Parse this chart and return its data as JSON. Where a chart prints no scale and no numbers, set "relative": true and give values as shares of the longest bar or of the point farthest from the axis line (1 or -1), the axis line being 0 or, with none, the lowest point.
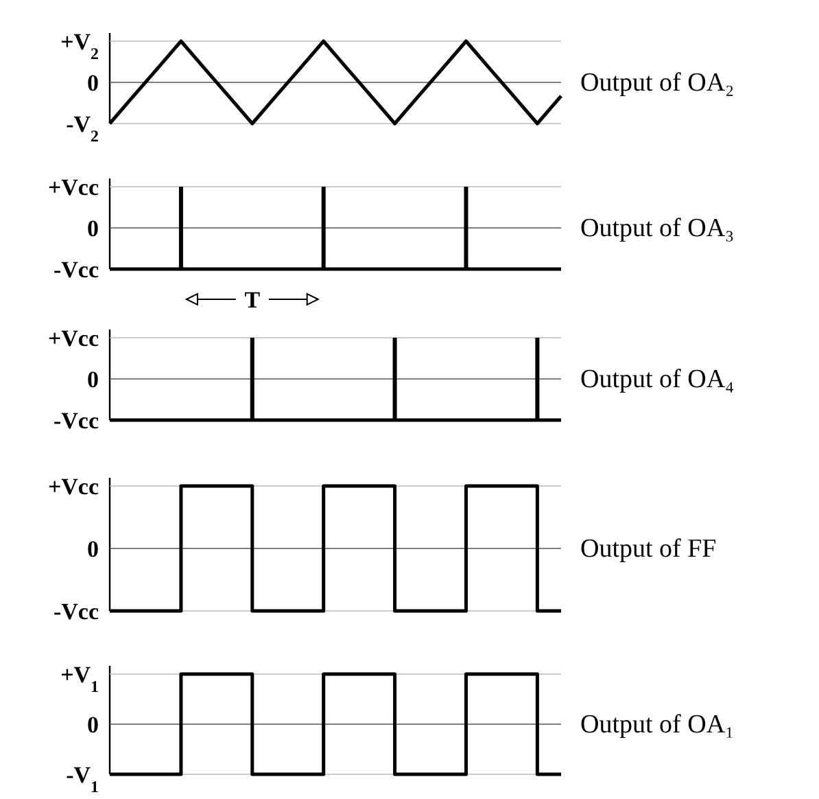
{
  "chart_data": [
    {
      "type": "line",
      "relative": true,
      "categories": [
        null,
        null,
        null,
        null,
        null,
        null,
        null,
        null,
        null,
        null,
        null,
        null,
        null,
        null,
        null,
        null,
        null,
        null,
        null,
        null
      ],
      "legend": false,
      "marker": "none",
      "line_style": "solid",
      "ref_lines": [
        {
          "axis": "y",
          "value": 1,
          "label": "+V$_{2}$"
        },
        {
          "axis": "y",
          "value": 0,
          "label": "0"
        },
        {
          "axis": "y",
          "value": -1,
          "label": "-V$_{2}$"
        }
      ],
      "series": [
        {
          "name": "Output of OA₂",
          "color": "#000000",
          "values": [
            -1,
            -0.333,
            0.333,
            1,
            0.333,
            -0.333,
            -1,
            -0.333,
            0.333,
            1,
            0.333,
            -0.333,
            -1,
            -0.333,
            0.333,
            1,
            0.333,
            -0.333,
            -1,
            -0.333
          ]
        }
      ]
    },
    {
      "type": "bar",
      "relative": true,
      "categories": [
        null,
        null,
        null,
        null,
        null,
        null,
        null,
        null,
        null,
        null,
        null,
        null,
        null,
        null,
        null,
        null,
        null,
        null,
        null,
        null
      ],
      "legend": false,
      "annotations": [
        "-Vcc",
        "T"
      ],
      "ref_lines": [
        {
          "axis": "y",
          "value": 1,
          "label": "+Vcc"
        },
        {
          "axis": "y",
          "value": 0.5,
          "label": "0"
        }
      ],
      "series": [
        {
          "name": "Output of OA₃",
          "color": "#000000",
          "values": [
            0,
            0,
            0,
            1,
            0,
            0,
            0,
            0,
            0,
            1,
            0,
            0,
            0,
            0,
            0,
            1,
            0,
            0,
            0,
            0
          ]
        }
      ]
    },
    {
      "type": "bar",
      "relative": true,
      "categories": [
        null,
        null,
        null,
        null,
        null,
        null,
        null,
        null,
        null,
        null,
        null,
        null,
        null,
        null,
        null,
        null,
        null,
        null,
        null,
        null
      ],
      "legend": false,
      "annotations": [
        "-Vcc"
      ],
      "ref_lines": [
        {
          "axis": "y",
          "value": 1,
          "label": "+Vcc"
        },
        {
          "axis": "y",
          "value": 0.5,
          "label": "0"
        }
      ],
      "series": [
        {
          "name": "Output of OA₄",
          "color": "#000000",
          "values": [
            0,
            0,
            0,
            0,
            0,
            0,
            1,
            0,
            0,
            0,
            0,
            0,
            1,
            0,
            0,
            0,
            0,
            0,
            1,
            0
          ]
        }
      ]
    },
    {
      "type": "step",
      "relative": true,
      "categories": [
        null,
        null,
        null,
        null,
        null,
        null,
        null,
        null,
        null,
        null,
        null,
        null,
        null,
        null,
        null,
        null,
        null,
        null,
        null,
        null
      ],
      "legend": false,
      "marker": "none",
      "line_style": "solid",
      "ref_lines": [
        {
          "axis": "y",
          "value": 1,
          "label": "+Vcc"
        },
        {
          "axis": "y",
          "value": 0,
          "label": "0"
        },
        {
          "axis": "y",
          "value": -1,
          "label": "-Vcc"
        }
      ],
      "series": [
        {
          "name": "Output of FF",
          "color": "#000000",
          "values": [
            -1,
            -1,
            -1,
            1,
            1,
            1,
            -1,
            -1,
            -1,
            1,
            1,
            1,
            -1,
            -1,
            -1,
            1,
            1,
            1,
            -1,
            -1
          ]
        }
      ]
    },
    {
      "type": "step",
      "relative": true,
      "categories": [
        null,
        null,
        null,
        null,
        null,
        null,
        null,
        null,
        null,
        null,
        null,
        null,
        null,
        null,
        null,
        null,
        null,
        null,
        null,
        null
      ],
      "legend": false,
      "marker": "none",
      "line_style": "solid",
      "ref_lines": [
        {
          "axis": "y",
          "value": 1,
          "label": "+V$_{1}$"
        },
        {
          "axis": "y",
          "value": 0,
          "label": "0"
        },
        {
          "axis": "y",
          "value": -1,
          "label": "-V$_{1}$"
        }
      ],
      "series": [
        {
          "name": "Output of OA₁",
          "color": "#000000",
          "values": [
            -1,
            -1,
            -1,
            1,
            1,
            1,
            -1,
            -1,
            -1,
            1,
            1,
            1,
            -1,
            -1,
            -1,
            1,
            1,
            1,
            -1,
            -1
          ]
        }
      ]
    }
  ]
}
